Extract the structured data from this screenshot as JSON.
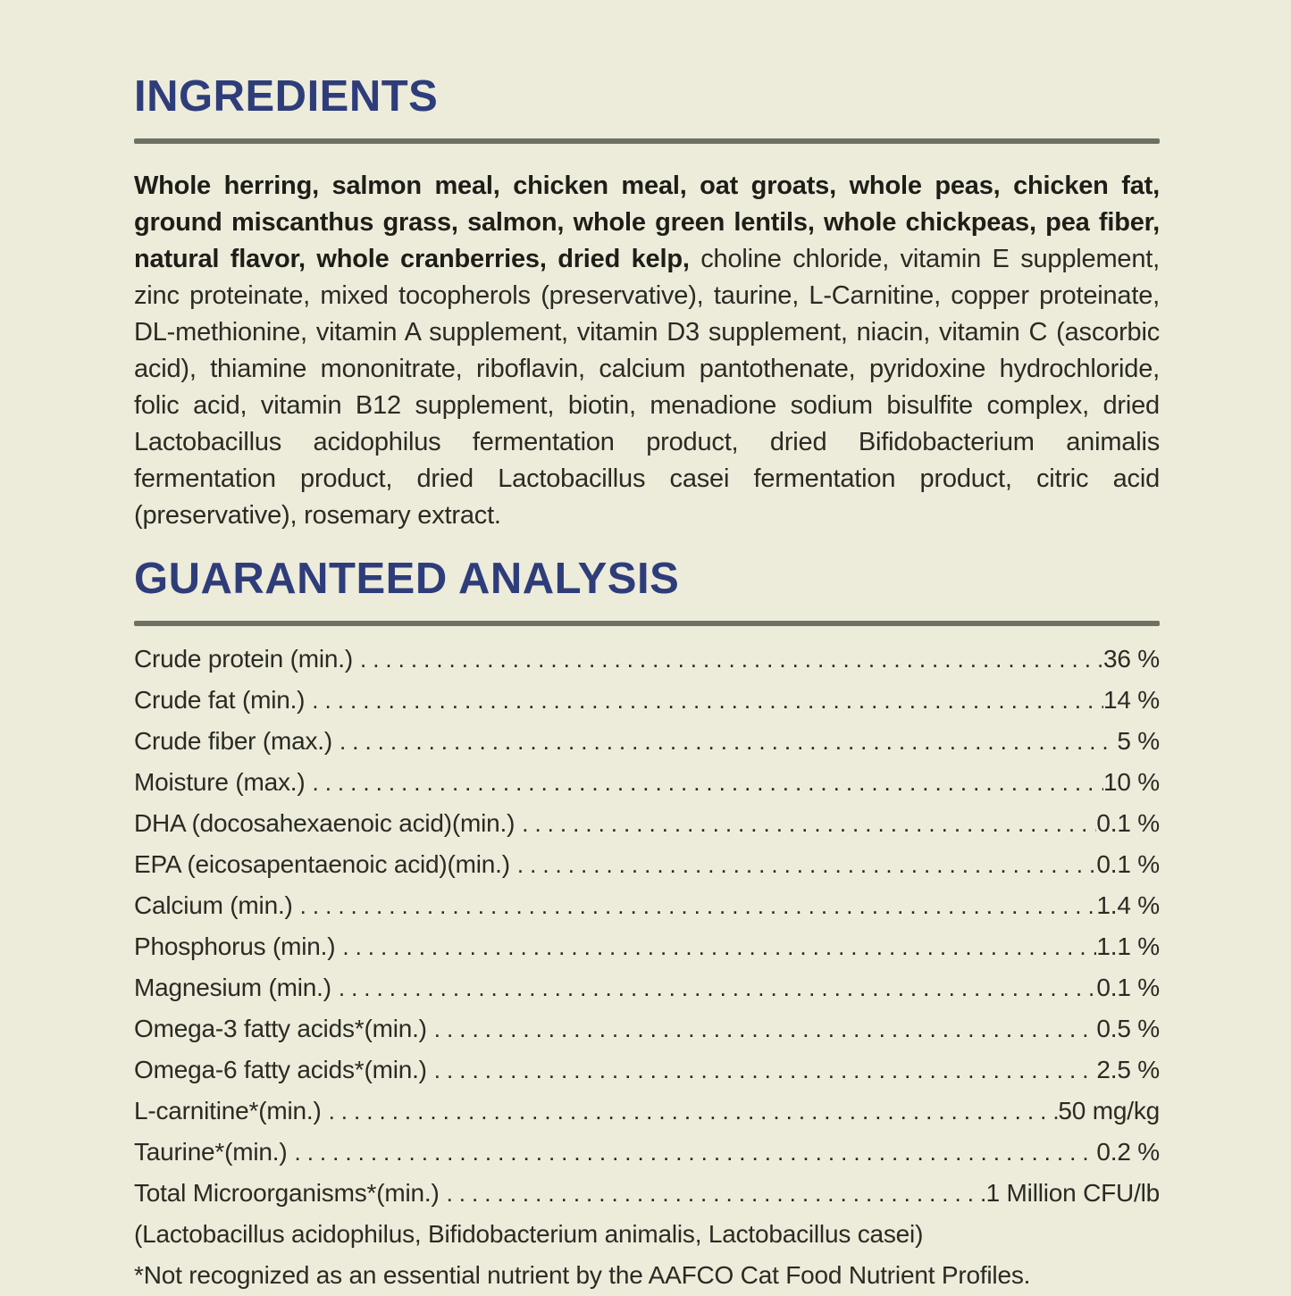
{
  "page": {
    "background_color": "#edebda",
    "heading_color": "#2e3d7a",
    "rule_color": "#6d7164",
    "text_color": "#2b2a23"
  },
  "ingredients": {
    "title": "INGREDIENTS",
    "lead_bold": "Whole herring, salmon meal, chicken meal, oat groats, whole peas, chicken fat, ground miscanthus grass, salmon, whole green lentils, whole chickpeas, pea fiber, natural flavor, whole cranberries, dried kelp,",
    "rest": " choline chloride, vitamin E supplement, zinc proteinate, mixed tocopherols (preservative), taurine, L-Carnitine, copper proteinate, DL-methionine, vitamin A supplement, vitamin D3 supplement, niacin, vitamin C (ascorbic acid), thiamine mononitrate, riboflavin, calcium pantothenate, pyridoxine hydrochloride, folic acid, vitamin B12 supplement, biotin, menadione sodium bisulfite complex, dried Lactobacillus acidophilus fermentation product, dried Bifidobacterium animalis fermentation product, dried Lactobacillus casei fermentation product, citric acid (preservative), rosemary extract."
  },
  "guaranteed_analysis": {
    "title": "GUARANTEED ANALYSIS",
    "rows": [
      {
        "label": "Crude protein (min.)",
        "value": "36 %"
      },
      {
        "label": "Crude fat (min.)",
        "value": "14 %"
      },
      {
        "label": "Crude fiber (max.)",
        "value": "5 %"
      },
      {
        "label": "Moisture (max.)",
        "value": "10 %"
      },
      {
        "label": "DHA (docosahexaenoic acid)(min.)",
        "value": "0.1 %"
      },
      {
        "label": "EPA (eicosapentaenoic acid)(min.)",
        "value": "0.1 %"
      },
      {
        "label": "Calcium (min.)",
        "value": "1.4 %"
      },
      {
        "label": "Phosphorus (min.)",
        "value": "1.1 %"
      },
      {
        "label": "Magnesium (min.)",
        "value": "0.1 %"
      },
      {
        "label": "Omega-3 fatty acids*(min.)",
        "value": "0.5 %"
      },
      {
        "label": "Omega-6 fatty acids*(min.)",
        "value": "2.5 %"
      },
      {
        "label": "L-carnitine*(min.)",
        "value": "50 mg/kg"
      },
      {
        "label": "Taurine*(min.)",
        "value": "0.2 %"
      },
      {
        "label": "Total Microorganisms*(min.)",
        "value": "1 Million CFU/lb"
      }
    ],
    "microorganisms_note": "(Lactobacillus acidophilus, Bifidobacterium animalis, Lactobacillus casei)",
    "aafco_footnote": "*Not recognized as an essential nutrient by the AAFCO Cat Food Nutrient Profiles."
  }
}
